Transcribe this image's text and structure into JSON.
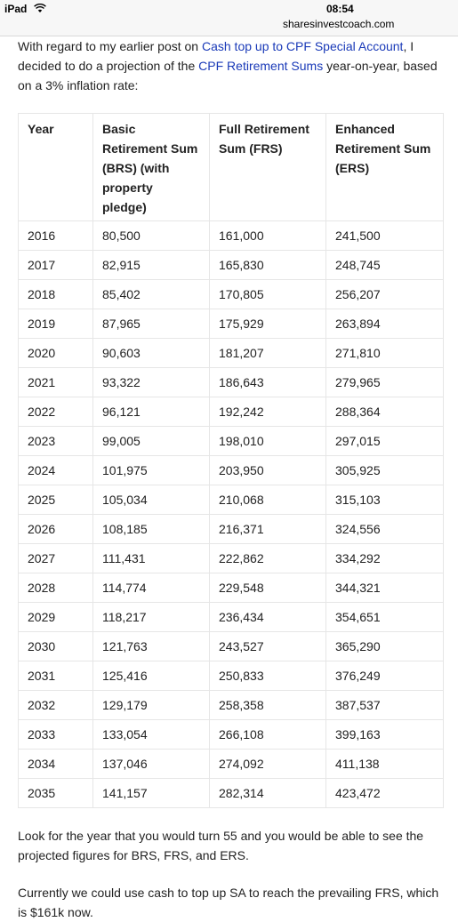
{
  "status_bar": {
    "device": "iPad",
    "time": "08:54",
    "url": "sharesinvestcoach.com"
  },
  "intro": {
    "parts": [
      {
        "text": "With regard to my earlier post on "
      },
      {
        "text": "Cash top up to CPF Special Account",
        "link": true
      },
      {
        "text": ", I decided to do a projection of the "
      },
      {
        "text": "CPF Retirement Sums",
        "link": true
      },
      {
        "text": " year-on-year, based on a 3% inflation rate:"
      }
    ]
  },
  "table": {
    "headers": [
      "Year",
      "Basic Retirement Sum (BRS) (with property pledge)",
      "Full Retirement Sum (FRS)",
      "Enhanced Retirement Sum (ERS)"
    ],
    "rows": [
      [
        "2016",
        "80,500",
        "161,000",
        "241,500"
      ],
      [
        "2017",
        "82,915",
        "165,830",
        "248,745"
      ],
      [
        "2018",
        "85,402",
        "170,805",
        "256,207"
      ],
      [
        "2019",
        "87,965",
        "175,929",
        "263,894"
      ],
      [
        "2020",
        "90,603",
        "181,207",
        "271,810"
      ],
      [
        "2021",
        "93,322",
        "186,643",
        "279,965"
      ],
      [
        "2022",
        "96,121",
        "192,242",
        "288,364"
      ],
      [
        "2023",
        "99,005",
        "198,010",
        "297,015"
      ],
      [
        "2024",
        "101,975",
        "203,950",
        "305,925"
      ],
      [
        "2025",
        "105,034",
        "210,068",
        "315,103"
      ],
      [
        "2026",
        "108,185",
        "216,371",
        "324,556"
      ],
      [
        "2027",
        "111,431",
        "222,862",
        "334,292"
      ],
      [
        "2028",
        "114,774",
        "229,548",
        "344,321"
      ],
      [
        "2029",
        "118,217",
        "236,434",
        "354,651"
      ],
      [
        "2030",
        "121,763",
        "243,527",
        "365,290"
      ],
      [
        "2031",
        "125,416",
        "250,833",
        "376,249"
      ],
      [
        "2032",
        "129,179",
        "258,358",
        "387,537"
      ],
      [
        "2033",
        "133,054",
        "266,108",
        "399,163"
      ],
      [
        "2034",
        "137,046",
        "274,092",
        "411,138"
      ],
      [
        "2035",
        "141,157",
        "282,314",
        "423,472"
      ]
    ]
  },
  "outro": [
    "Look for the year that you would turn 55 and you would be able to see the projected figures for BRS, FRS, and ERS.",
    "Currently we could use cash to top up SA to reach the prevailing FRS, which is $161k now."
  ]
}
